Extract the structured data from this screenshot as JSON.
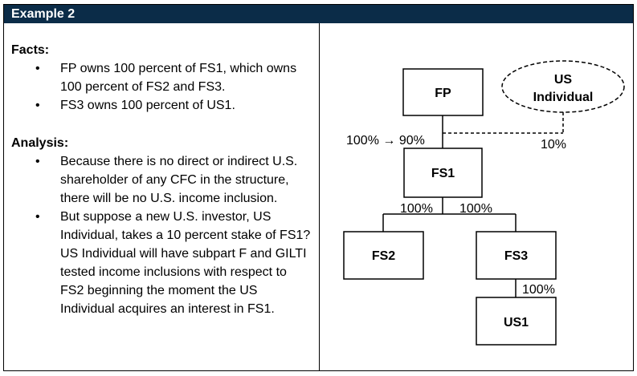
{
  "header": {
    "title": "Example 2"
  },
  "facts": {
    "title": "Facts:",
    "items": [
      "FP owns 100 percent of FS1, which owns 100 percent of FS2 and FS3.",
      "FS3 owns 100 percent of US1."
    ]
  },
  "analysis": {
    "title": "Analysis:",
    "items": [
      "Because there is no direct or indirect U.S. shareholder of any CFC in the structure, there will be no U.S. income inclusion.",
      "But suppose a new U.S. investor, US Individual, takes a 10 percent stake of FS1?  US Individual will have subpart F and GILTI tested income inclusions with respect to FS2 beginning the moment the US Individual acquires an interest in FS1."
    ]
  },
  "diagram": {
    "nodes": {
      "fp": "FP",
      "us_individual_line1": "US",
      "us_individual_line2": "Individual",
      "fs1": "FS1",
      "fs2": "FS2",
      "fs3": "FS3",
      "us1": "US1"
    },
    "edges": {
      "fp_fs1": "100% → 90%",
      "usind_fs1": "10%",
      "fs1_fs2": "100%",
      "fs1_fs3": "100%",
      "fs3_us1": "100%"
    }
  }
}
